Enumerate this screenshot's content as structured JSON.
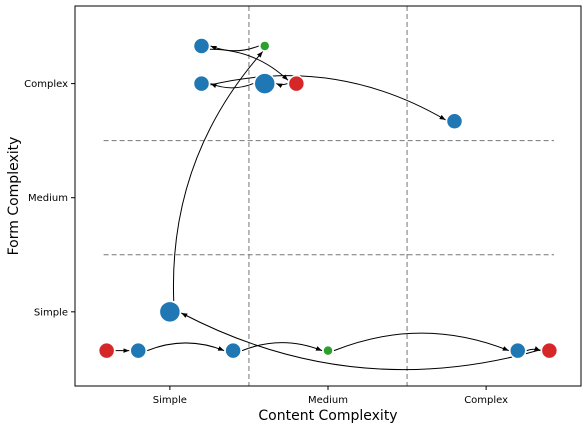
{
  "chart_data": {
    "type": "scatter",
    "title": "",
    "xlabel": "Content Complexity",
    "ylabel": "Form Complexity",
    "x_ticks": [
      {
        "value": 1,
        "label": "Simple"
      },
      {
        "value": 2,
        "label": "Medium"
      },
      {
        "value": 3,
        "label": "Complex"
      }
    ],
    "y_ticks": [
      {
        "value": 1,
        "label": "Simple"
      },
      {
        "value": 2,
        "label": "Medium"
      },
      {
        "value": 3,
        "label": "Complex"
      }
    ],
    "xlim": [
      0.4,
      3.6
    ],
    "ylim": [
      0.35,
      3.68
    ],
    "grid_lines_x": [
      1.5,
      2.5
    ],
    "grid_lines_y": [
      1.5,
      2.5
    ],
    "colors": {
      "blue": "#1f77b4",
      "red": "#d62728",
      "green": "#2ca02c"
    },
    "points": [
      {
        "id": "p1",
        "x": 0.6,
        "y": 0.66,
        "size": "medium",
        "color": "red"
      },
      {
        "id": "p2",
        "x": 0.8,
        "y": 0.66,
        "size": "medium",
        "color": "blue"
      },
      {
        "id": "p3",
        "x": 1.4,
        "y": 0.66,
        "size": "medium",
        "color": "blue"
      },
      {
        "id": "p4",
        "x": 2.0,
        "y": 0.66,
        "size": "small",
        "color": "green"
      },
      {
        "id": "p5",
        "x": 3.2,
        "y": 0.66,
        "size": "medium",
        "color": "blue"
      },
      {
        "id": "p6",
        "x": 3.4,
        "y": 0.66,
        "size": "medium",
        "color": "red"
      },
      {
        "id": "p7",
        "x": 1.0,
        "y": 1.0,
        "size": "large",
        "color": "blue"
      },
      {
        "id": "p8",
        "x": 1.2,
        "y": 3.33,
        "size": "medium",
        "color": "blue"
      },
      {
        "id": "p9",
        "x": 1.6,
        "y": 3.33,
        "size": "small",
        "color": "green"
      },
      {
        "id": "p10",
        "x": 1.2,
        "y": 3.0,
        "size": "medium",
        "color": "blue"
      },
      {
        "id": "p11",
        "x": 1.6,
        "y": 3.0,
        "size": "large",
        "color": "blue"
      },
      {
        "id": "p12",
        "x": 1.8,
        "y": 3.0,
        "size": "medium",
        "color": "red"
      },
      {
        "id": "p13",
        "x": 2.8,
        "y": 2.67,
        "size": "medium",
        "color": "blue"
      }
    ],
    "edges": [
      {
        "from": "p1",
        "to": "p2",
        "bend": 0
      },
      {
        "from": "p2",
        "to": "p3",
        "bend": 0.2
      },
      {
        "from": "p3",
        "to": "p4",
        "bend": 0.2
      },
      {
        "from": "p4",
        "to": "p5",
        "bend": 0.2
      },
      {
        "from": "p5",
        "to": "p6",
        "bend": 0.2
      },
      {
        "from": "p6",
        "to": "p7",
        "bend": 0.2
      },
      {
        "from": "p7",
        "to": "p9",
        "bend": 0.2
      },
      {
        "from": "p9",
        "to": "p8",
        "bend": 0.2
      },
      {
        "from": "p8",
        "to": "p12",
        "bend": 0.2
      },
      {
        "from": "p12",
        "to": "p11",
        "bend": 0.2
      },
      {
        "from": "p11",
        "to": "p10",
        "bend": 0.2
      },
      {
        "from": "p10",
        "to": "p13",
        "bend": 0.2
      }
    ]
  }
}
